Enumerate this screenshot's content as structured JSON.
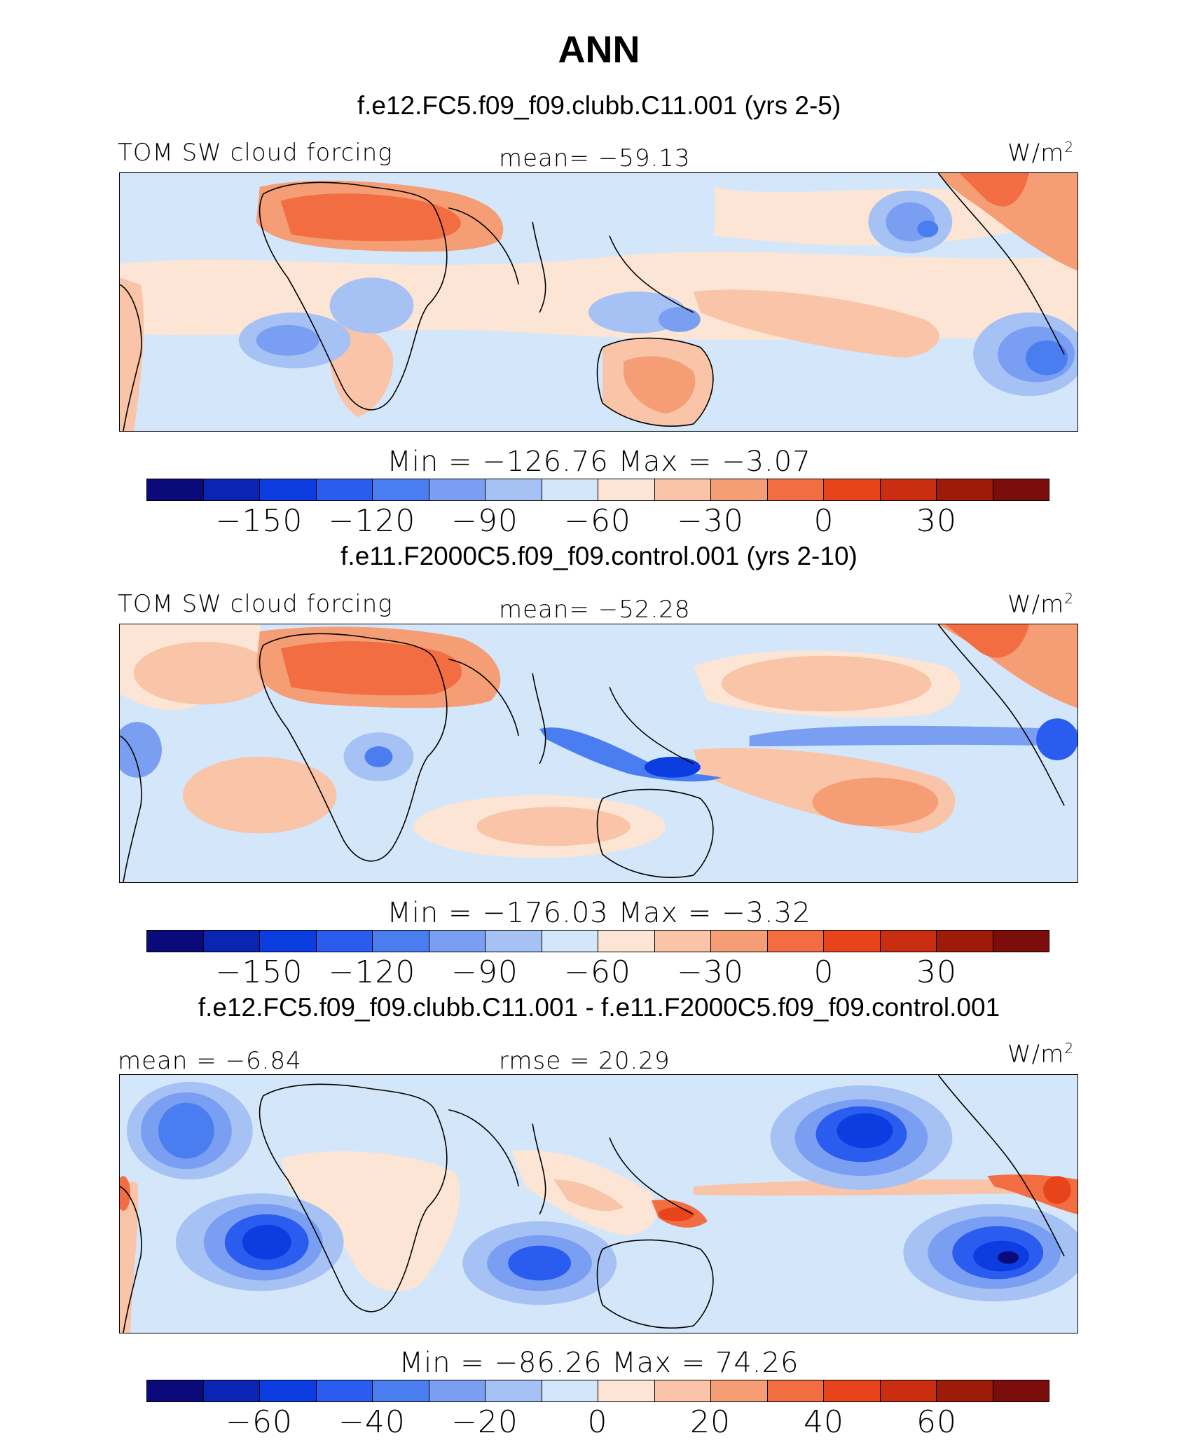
{
  "page_title": "ANN",
  "units": "W/m",
  "units_sup": "2",
  "palette_abs": [
    "#0a0a7a",
    "#0a24b4",
    "#0c3de0",
    "#2a5cf0",
    "#4a7df0",
    "#7a9ff2",
    "#a6c1f4",
    "#d4e6fa",
    "#fce5d4",
    "#f9c4a7",
    "#f59e76",
    "#f26d41",
    "#e8441c",
    "#c92e10",
    "#9e1a09",
    "#7b0d0d"
  ],
  "palette_diff": [
    "#0a0a7a",
    "#0a24b4",
    "#0c3de0",
    "#2a5cf0",
    "#4a7df0",
    "#7a9ff2",
    "#a6c1f4",
    "#d4e6fa",
    "#fce5d4",
    "#f9c4a7",
    "#f59e76",
    "#f26d41",
    "#e8441c",
    "#c92e10",
    "#9e1a09",
    "#7b0d0d"
  ],
  "chart_data": [
    {
      "type": "heatmap",
      "case_title": "f.e12.FC5.f09_f09.clubb.C11.001 (yrs 2-5)",
      "variable": "TOM SW cloud forcing",
      "mean_text": "mean= −59.13",
      "minmax_text": "Min = −126.76 Max =  −3.07",
      "min": -126.76,
      "max": -3.07,
      "mean": -59.13,
      "colorbar_ticks": [
        "−150",
        "−120",
        "−90",
        "−60",
        "−30",
        "0",
        "30"
      ],
      "colorbar_levels": [
        -165,
        -150,
        -135,
        -120,
        -105,
        -90,
        -75,
        -60,
        -45,
        -30,
        -15,
        0,
        15,
        30,
        45
      ]
    },
    {
      "type": "heatmap",
      "case_title": "f.e11.F2000C5.f09_f09.control.001 (yrs 2-10)",
      "variable": "TOM SW cloud forcing",
      "mean_text": "mean= −52.28",
      "minmax_text": "Min = −176.03 Max =  −3.32",
      "min": -176.03,
      "max": -3.32,
      "mean": -52.28,
      "colorbar_ticks": [
        "−150",
        "−120",
        "−90",
        "−60",
        "−30",
        "0",
        "30"
      ],
      "colorbar_levels": [
        -165,
        -150,
        -135,
        -120,
        -105,
        -90,
        -75,
        -60,
        -45,
        -30,
        -15,
        0,
        15,
        30,
        45
      ]
    },
    {
      "type": "heatmap",
      "case_title": "f.e12.FC5.f09_f09.clubb.C11.001 - f.e11.F2000C5.f09_f09.control.001",
      "variable": "",
      "mean_text": "mean =  −6.84",
      "rmse_text": "rmse =  20.29",
      "minmax_text": "Min = −86.26 Max =  74.26",
      "min": -86.26,
      "max": 74.26,
      "mean": -6.84,
      "rmse": 20.29,
      "colorbar_ticks": [
        "−60",
        "−40",
        "−20",
        "0",
        "20",
        "40",
        "60"
      ],
      "colorbar_levels": [
        -70,
        -60,
        -50,
        -40,
        -30,
        -20,
        -10,
        0,
        10,
        20,
        30,
        40,
        50,
        60,
        70
      ]
    }
  ]
}
